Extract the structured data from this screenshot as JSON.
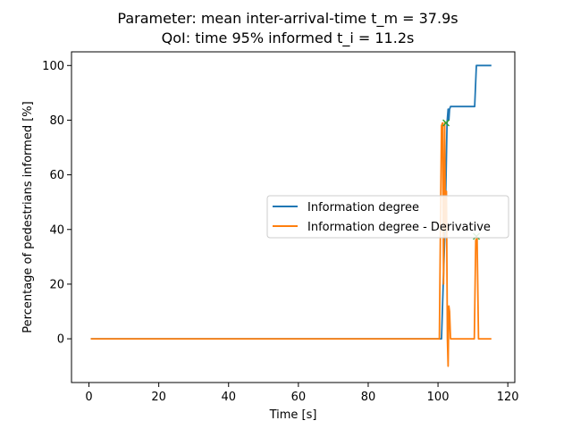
{
  "chart_data": {
    "type": "line",
    "title_line1": "Parameter: mean inter-arrival-time t_m = 37.9s",
    "title_line2": "QoI: time 95% informed t_i = 11.2s",
    "xlabel": "Time [s]",
    "ylabel": "Percentage of pedestrians informed [%]",
    "xlim": [
      -5,
      122
    ],
    "ylim": [
      -16,
      105
    ],
    "xticks": [
      0,
      20,
      40,
      60,
      80,
      100,
      120
    ],
    "yticks": [
      0,
      20,
      40,
      60,
      80,
      100
    ],
    "grid": false,
    "legend_position": "center-right",
    "series": [
      {
        "name": "Information degree",
        "color": "#1f77b4",
        "x": [
          0.5,
          100.0,
          100.5,
          101.0,
          101.5,
          102.0,
          102.3,
          102.6,
          102.9,
          103.1,
          103.3,
          103.6,
          104.0,
          110.5,
          111.0,
          115.3
        ],
        "y": [
          0,
          0,
          0,
          0,
          20,
          40,
          60,
          79,
          84,
          80,
          84,
          85,
          85,
          85,
          100,
          100
        ]
      },
      {
        "name": "Information degree - Derivative",
        "color": "#ff7f0e",
        "x": [
          0.5,
          100.0,
          100.4,
          100.7,
          101.0,
          101.3,
          101.6,
          101.9,
          102.1,
          102.4,
          102.7,
          102.9,
          103.1,
          103.3,
          103.6,
          110.4,
          110.8,
          111.2,
          111.6,
          115.3
        ],
        "y": [
          0,
          0,
          0,
          40,
          78,
          79,
          20,
          79,
          40,
          54,
          0,
          -10,
          12,
          10,
          0,
          0,
          36,
          37,
          0,
          0
        ]
      }
    ],
    "markers": [
      {
        "x": 102.3,
        "y": 79,
        "symbol": "x",
        "color": "#2ca02c"
      },
      {
        "x": 111.0,
        "y": 37.5,
        "symbol": "x",
        "color": "#2ca02c"
      }
    ]
  }
}
